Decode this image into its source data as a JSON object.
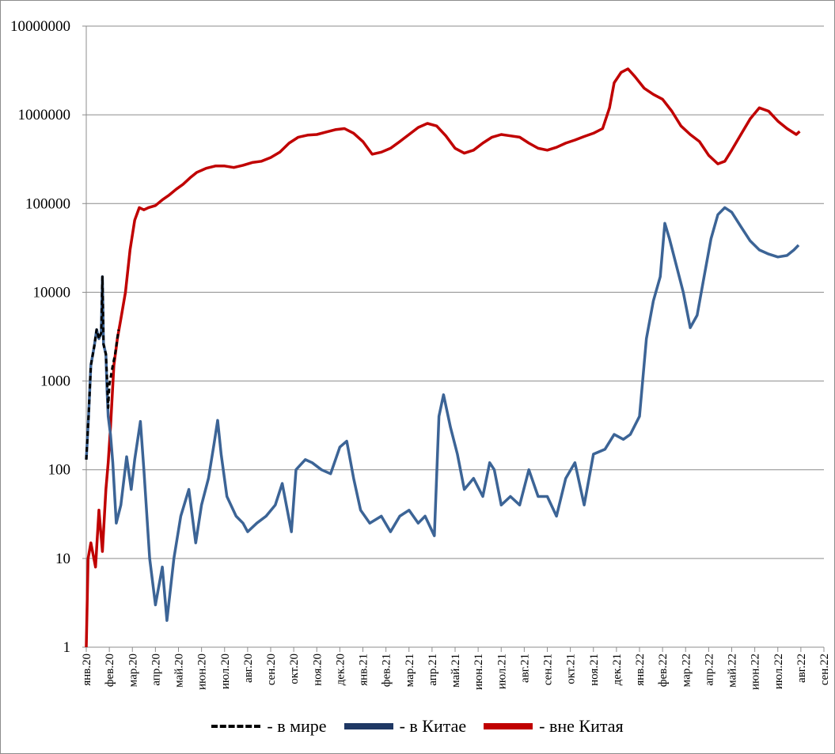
{
  "chart_data": {
    "type": "line",
    "title": "",
    "xlabel": "",
    "ylabel": "",
    "y_scale": "log",
    "ylim": [
      1,
      10000000
    ],
    "y_ticks": [
      "1",
      "10",
      "100",
      "1000",
      "10000",
      "100000",
      "1000000",
      "10000000"
    ],
    "x_ticks": [
      "янв.20",
      "фев.20",
      "мар.20",
      "апр.20",
      "май.20",
      "июн.20",
      "июл.20",
      "авг.20",
      "сен.20",
      "окт.20",
      "ноя.20",
      "дек.20",
      "янв.21",
      "фев.21",
      "мар.21",
      "апр.21",
      "май.21",
      "июн.21",
      "июл.21",
      "авг.21",
      "сен.21",
      "окт.21",
      "ноя.21",
      "дек.21",
      "янв.22",
      "фев.22",
      "мар.22",
      "апр.22",
      "май.22",
      "июн.22",
      "июл.22",
      "авг.22",
      "сен.22"
    ],
    "grid": "horizontal",
    "legend_position": "bottom",
    "series": [
      {
        "name": "- в мире",
        "color": "#000000",
        "style": "dashed",
        "points": [
          [
            0.0,
            130
          ],
          [
            0.1,
            400
          ],
          [
            0.2,
            1500
          ],
          [
            0.35,
            2500
          ],
          [
            0.45,
            3800
          ],
          [
            0.55,
            3000
          ],
          [
            0.65,
            3500
          ],
          [
            0.7,
            15000
          ],
          [
            0.75,
            2600
          ],
          [
            0.85,
            2000
          ],
          [
            0.9,
            1100
          ],
          [
            0.95,
            500
          ],
          [
            1.0,
            900
          ],
          [
            1.15,
            1500
          ],
          [
            1.25,
            2000
          ],
          [
            1.4,
            3800
          ]
        ]
      },
      {
        "name": "-  в Китае",
        "color": "#3c6496",
        "style": "solid",
        "points": [
          [
            0.0,
            130
          ],
          [
            0.1,
            400
          ],
          [
            0.2,
            1500
          ],
          [
            0.35,
            2500
          ],
          [
            0.45,
            3800
          ],
          [
            0.55,
            3000
          ],
          [
            0.65,
            3500
          ],
          [
            0.7,
            15000
          ],
          [
            0.75,
            2600
          ],
          [
            0.85,
            2000
          ],
          [
            0.9,
            800
          ],
          [
            0.95,
            400
          ],
          [
            1.05,
            250
          ],
          [
            1.15,
            120
          ],
          [
            1.3,
            25
          ],
          [
            1.5,
            40
          ],
          [
            1.75,
            140
          ],
          [
            1.95,
            60
          ],
          [
            2.1,
            130
          ],
          [
            2.35,
            350
          ],
          [
            2.5,
            100
          ],
          [
            2.75,
            10
          ],
          [
            3.0,
            3
          ],
          [
            3.3,
            8
          ],
          [
            3.5,
            2
          ],
          [
            3.8,
            10
          ],
          [
            4.1,
            30
          ],
          [
            4.45,
            60
          ],
          [
            4.75,
            15
          ],
          [
            5.0,
            40
          ],
          [
            5.3,
            80
          ],
          [
            5.55,
            200
          ],
          [
            5.7,
            360
          ],
          [
            5.85,
            150
          ],
          [
            6.1,
            50
          ],
          [
            6.5,
            30
          ],
          [
            6.8,
            25
          ],
          [
            7.0,
            20
          ],
          [
            7.4,
            25
          ],
          [
            7.8,
            30
          ],
          [
            8.2,
            40
          ],
          [
            8.5,
            70
          ],
          [
            8.9,
            20
          ],
          [
            9.1,
            100
          ],
          [
            9.5,
            130
          ],
          [
            9.8,
            120
          ],
          [
            10.2,
            100
          ],
          [
            10.6,
            90
          ],
          [
            11.0,
            180
          ],
          [
            11.3,
            210
          ],
          [
            11.6,
            80
          ],
          [
            11.9,
            35
          ],
          [
            12.3,
            25
          ],
          [
            12.8,
            30
          ],
          [
            13.2,
            20
          ],
          [
            13.6,
            30
          ],
          [
            14.0,
            35
          ],
          [
            14.4,
            25
          ],
          [
            14.7,
            30
          ],
          [
            15.1,
            18
          ],
          [
            15.3,
            400
          ],
          [
            15.5,
            700
          ],
          [
            15.8,
            300
          ],
          [
            16.1,
            150
          ],
          [
            16.4,
            60
          ],
          [
            16.8,
            80
          ],
          [
            17.2,
            50
          ],
          [
            17.5,
            120
          ],
          [
            17.7,
            100
          ],
          [
            18.0,
            40
          ],
          [
            18.4,
            50
          ],
          [
            18.8,
            40
          ],
          [
            19.2,
            100
          ],
          [
            19.6,
            50
          ],
          [
            20.0,
            50
          ],
          [
            20.4,
            30
          ],
          [
            20.8,
            80
          ],
          [
            21.2,
            120
          ],
          [
            21.6,
            40
          ],
          [
            22.0,
            150
          ],
          [
            22.5,
            170
          ],
          [
            22.9,
            250
          ],
          [
            23.3,
            220
          ],
          [
            23.6,
            250
          ],
          [
            24.0,
            400
          ],
          [
            24.3,
            3000
          ],
          [
            24.6,
            8000
          ],
          [
            24.9,
            15000
          ],
          [
            25.1,
            60000
          ],
          [
            25.3,
            40000
          ],
          [
            25.6,
            20000
          ],
          [
            25.9,
            10000
          ],
          [
            26.2,
            4000
          ],
          [
            26.5,
            5500
          ],
          [
            26.8,
            15000
          ],
          [
            27.1,
            40000
          ],
          [
            27.4,
            75000
          ],
          [
            27.7,
            90000
          ],
          [
            28.0,
            80000
          ],
          [
            28.4,
            55000
          ],
          [
            28.8,
            38000
          ],
          [
            29.2,
            30000
          ],
          [
            29.6,
            27000
          ],
          [
            30.0,
            25000
          ],
          [
            30.4,
            26000
          ],
          [
            30.7,
            30000
          ],
          [
            30.9,
            34000
          ]
        ]
      },
      {
        "name": "- вне Китая",
        "color": "#c00000",
        "style": "solid",
        "points": [
          [
            0.0,
            1
          ],
          [
            0.08,
            10
          ],
          [
            0.2,
            15
          ],
          [
            0.4,
            8
          ],
          [
            0.55,
            35
          ],
          [
            0.7,
            12
          ],
          [
            0.85,
            60
          ],
          [
            0.95,
            120
          ],
          [
            1.05,
            300
          ],
          [
            1.2,
            1500
          ],
          [
            1.35,
            3000
          ],
          [
            1.5,
            5000
          ],
          [
            1.7,
            10000
          ],
          [
            1.9,
            30000
          ],
          [
            2.1,
            65000
          ],
          [
            2.3,
            90000
          ],
          [
            2.5,
            85000
          ],
          [
            2.7,
            90000
          ],
          [
            3.0,
            95000
          ],
          [
            3.3,
            110000
          ],
          [
            3.6,
            125000
          ],
          [
            3.9,
            145000
          ],
          [
            4.2,
            165000
          ],
          [
            4.5,
            195000
          ],
          [
            4.8,
            225000
          ],
          [
            5.2,
            250000
          ],
          [
            5.6,
            265000
          ],
          [
            6.0,
            265000
          ],
          [
            6.4,
            255000
          ],
          [
            6.8,
            270000
          ],
          [
            7.2,
            290000
          ],
          [
            7.6,
            300000
          ],
          [
            8.0,
            330000
          ],
          [
            8.4,
            380000
          ],
          [
            8.8,
            480000
          ],
          [
            9.2,
            560000
          ],
          [
            9.6,
            590000
          ],
          [
            10.0,
            600000
          ],
          [
            10.4,
            640000
          ],
          [
            10.8,
            680000
          ],
          [
            11.2,
            700000
          ],
          [
            11.6,
            620000
          ],
          [
            12.0,
            500000
          ],
          [
            12.4,
            360000
          ],
          [
            12.8,
            380000
          ],
          [
            13.2,
            420000
          ],
          [
            13.6,
            500000
          ],
          [
            14.0,
            600000
          ],
          [
            14.4,
            720000
          ],
          [
            14.8,
            800000
          ],
          [
            15.2,
            750000
          ],
          [
            15.6,
            580000
          ],
          [
            16.0,
            420000
          ],
          [
            16.4,
            370000
          ],
          [
            16.8,
            400000
          ],
          [
            17.2,
            480000
          ],
          [
            17.6,
            560000
          ],
          [
            18.0,
            600000
          ],
          [
            18.4,
            580000
          ],
          [
            18.8,
            560000
          ],
          [
            19.2,
            480000
          ],
          [
            19.6,
            420000
          ],
          [
            20.0,
            400000
          ],
          [
            20.4,
            430000
          ],
          [
            20.8,
            480000
          ],
          [
            21.2,
            520000
          ],
          [
            21.6,
            570000
          ],
          [
            22.0,
            620000
          ],
          [
            22.4,
            700000
          ],
          [
            22.7,
            1200000
          ],
          [
            22.9,
            2300000
          ],
          [
            23.2,
            3000000
          ],
          [
            23.5,
            3300000
          ],
          [
            23.8,
            2700000
          ],
          [
            24.2,
            2000000
          ],
          [
            24.6,
            1700000
          ],
          [
            25.0,
            1500000
          ],
          [
            25.4,
            1100000
          ],
          [
            25.8,
            750000
          ],
          [
            26.2,
            600000
          ],
          [
            26.6,
            500000
          ],
          [
            27.0,
            350000
          ],
          [
            27.4,
            280000
          ],
          [
            27.7,
            300000
          ],
          [
            28.0,
            400000
          ],
          [
            28.4,
            600000
          ],
          [
            28.8,
            900000
          ],
          [
            29.2,
            1200000
          ],
          [
            29.6,
            1100000
          ],
          [
            30.0,
            850000
          ],
          [
            30.4,
            700000
          ],
          [
            30.8,
            600000
          ],
          [
            30.95,
            650000
          ]
        ]
      }
    ]
  },
  "legend": {
    "items": [
      {
        "label": "- в мире",
        "color": "#000000",
        "style": "dashed"
      },
      {
        "label": "-  в Китае",
        "color": "#1f3864",
        "style": "solid"
      },
      {
        "label": "- вне Китая",
        "color": "#c00000",
        "style": "solid"
      }
    ]
  }
}
